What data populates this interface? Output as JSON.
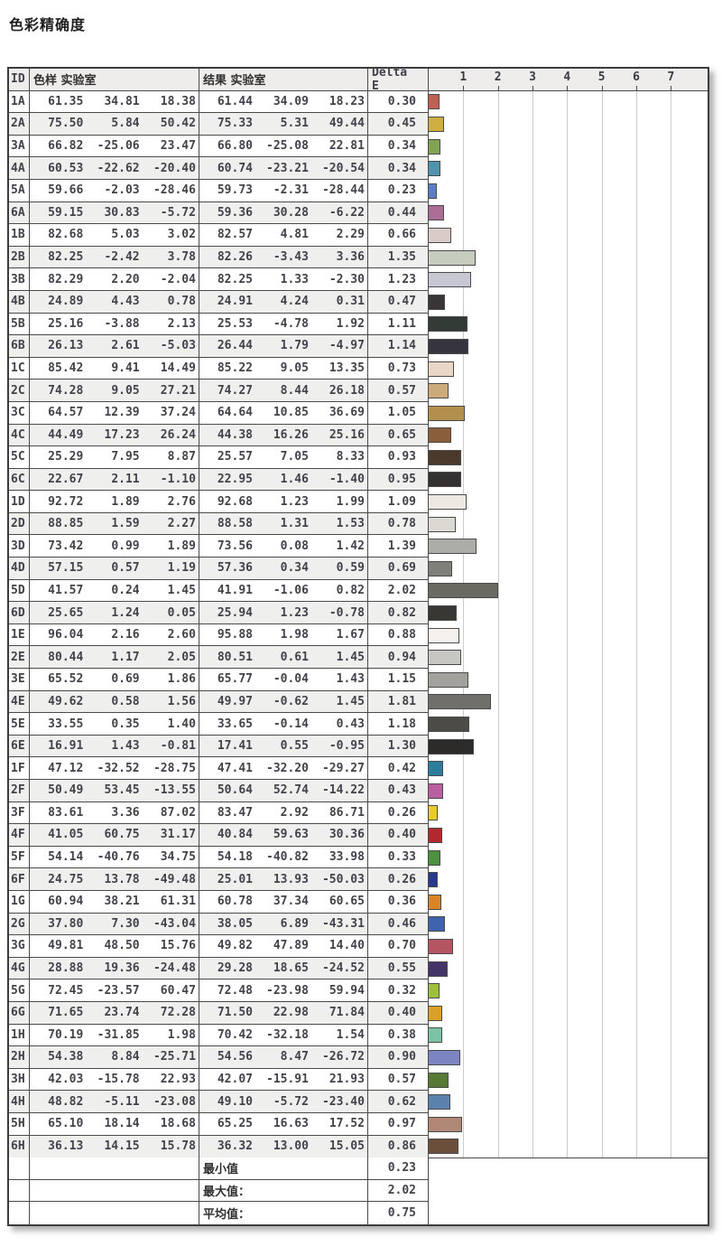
{
  "title": "色彩精确度",
  "table": {
    "headers": {
      "id": "ID",
      "sample": "色样 实验室",
      "result": "结果 实验室",
      "delta": "Delta E"
    },
    "summary": [
      {
        "label": "最小值",
        "value": 0.23
      },
      {
        "label": "最大值：",
        "value": 2.02
      },
      {
        "label": "平均值：",
        "value": 0.75
      }
    ]
  },
  "chart_data": {
    "type": "bar",
    "title": "色彩精确度 Delta E per color patch",
    "xlabel": "Delta E",
    "ylabel": "色样 ID",
    "ticks": [
      1,
      2,
      3,
      4,
      5,
      6,
      7
    ],
    "xlim": [
      0,
      8.06
    ],
    "grid": true,
    "rows": [
      {
        "id": "1A",
        "sample": [
          61.35,
          34.81,
          18.38
        ],
        "result": [
          61.44,
          34.09,
          18.23
        ],
        "delta": 0.3,
        "color": "#c06158"
      },
      {
        "id": "2A",
        "sample": [
          75.5,
          5.84,
          50.42
        ],
        "result": [
          75.33,
          5.31,
          49.44
        ],
        "delta": 0.45,
        "color": "#cfae43"
      },
      {
        "id": "3A",
        "sample": [
          66.82,
          -25.06,
          23.47
        ],
        "result": [
          66.8,
          -25.08,
          22.81
        ],
        "delta": 0.34,
        "color": "#82a452"
      },
      {
        "id": "4A",
        "sample": [
          60.53,
          -22.62,
          -20.4
        ],
        "result": [
          60.74,
          -23.21,
          -20.54
        ],
        "delta": 0.34,
        "color": "#4f93ad"
      },
      {
        "id": "5A",
        "sample": [
          59.66,
          -2.03,
          -28.46
        ],
        "result": [
          59.73,
          -2.31,
          -28.44
        ],
        "delta": 0.23,
        "color": "#5b7ec3"
      },
      {
        "id": "6A",
        "sample": [
          59.15,
          30.83,
          -5.72
        ],
        "result": [
          59.36,
          30.28,
          -6.22
        ],
        "delta": 0.44,
        "color": "#aa6d96"
      },
      {
        "id": "1B",
        "sample": [
          82.68,
          5.03,
          3.02
        ],
        "result": [
          82.57,
          4.81,
          2.29
        ],
        "delta": 0.66,
        "color": "#d8cbc8"
      },
      {
        "id": "2B",
        "sample": [
          82.25,
          -2.42,
          3.78
        ],
        "result": [
          82.26,
          -3.43,
          3.36
        ],
        "delta": 1.35,
        "color": "#c6ccbe"
      },
      {
        "id": "3B",
        "sample": [
          82.29,
          2.2,
          -2.04
        ],
        "result": [
          82.25,
          1.33,
          -2.3
        ],
        "delta": 1.23,
        "color": "#c7c6d3"
      },
      {
        "id": "4B",
        "sample": [
          24.89,
          4.43,
          0.78
        ],
        "result": [
          24.91,
          4.24,
          0.31
        ],
        "delta": 0.47,
        "color": "#3a3637"
      },
      {
        "id": "5B",
        "sample": [
          25.16,
          -3.88,
          2.13
        ],
        "result": [
          25.53,
          -4.78,
          1.92
        ],
        "delta": 1.11,
        "color": "#343b36"
      },
      {
        "id": "6B",
        "sample": [
          26.13,
          2.61,
          -5.03
        ],
        "result": [
          26.44,
          1.79,
          -4.97
        ],
        "delta": 1.14,
        "color": "#35343f"
      },
      {
        "id": "1C",
        "sample": [
          85.42,
          9.41,
          14.49
        ],
        "result": [
          85.22,
          9.05,
          13.35
        ],
        "delta": 0.73,
        "color": "#ead6c6"
      },
      {
        "id": "2C",
        "sample": [
          74.28,
          9.05,
          27.21
        ],
        "result": [
          74.27,
          8.44,
          26.18
        ],
        "delta": 0.57,
        "color": "#ccaa79"
      },
      {
        "id": "3C",
        "sample": [
          64.57,
          12.39,
          37.24
        ],
        "result": [
          64.64,
          10.85,
          36.69
        ],
        "delta": 1.05,
        "color": "#b28f4d"
      },
      {
        "id": "4C",
        "sample": [
          44.49,
          17.23,
          26.24
        ],
        "result": [
          44.38,
          16.26,
          25.16
        ],
        "delta": 0.65,
        "color": "#8a5e3b"
      },
      {
        "id": "5C",
        "sample": [
          25.29,
          7.95,
          8.87
        ],
        "result": [
          25.57,
          7.05,
          8.33
        ],
        "delta": 0.93,
        "color": "#4b3a2b"
      },
      {
        "id": "6C",
        "sample": [
          22.67,
          2.11,
          -1.1
        ],
        "result": [
          22.95,
          1.46,
          -1.4
        ],
        "delta": 0.95,
        "color": "#343130"
      },
      {
        "id": "1D",
        "sample": [
          92.72,
          1.89,
          2.76
        ],
        "result": [
          92.68,
          1.23,
          1.99
        ],
        "delta": 1.09,
        "color": "#ede8e2"
      },
      {
        "id": "2D",
        "sample": [
          88.85,
          1.59,
          2.27
        ],
        "result": [
          88.58,
          1.31,
          1.53
        ],
        "delta": 0.78,
        "color": "#dcd9d4"
      },
      {
        "id": "3D",
        "sample": [
          73.42,
          0.99,
          1.89
        ],
        "result": [
          73.56,
          0.08,
          1.42
        ],
        "delta": 1.39,
        "color": "#adada8"
      },
      {
        "id": "4D",
        "sample": [
          57.15,
          0.57,
          1.19
        ],
        "result": [
          57.36,
          0.34,
          0.59
        ],
        "delta": 0.69,
        "color": "#80807b"
      },
      {
        "id": "5D",
        "sample": [
          41.57,
          0.24,
          1.45
        ],
        "result": [
          41.91,
          -1.06,
          0.82
        ],
        "delta": 2.02,
        "color": "#6a6a63"
      },
      {
        "id": "6D",
        "sample": [
          25.65,
          1.24,
          0.05
        ],
        "result": [
          25.94,
          1.23,
          -0.78
        ],
        "delta": 0.82,
        "color": "#393734"
      },
      {
        "id": "1E",
        "sample": [
          96.04,
          2.16,
          2.6
        ],
        "result": [
          95.88,
          1.98,
          1.67
        ],
        "delta": 0.88,
        "color": "#f6f1ed"
      },
      {
        "id": "2E",
        "sample": [
          80.44,
          1.17,
          2.05
        ],
        "result": [
          80.51,
          0.61,
          1.45
        ],
        "delta": 0.94,
        "color": "#c8c6c2"
      },
      {
        "id": "3E",
        "sample": [
          65.52,
          0.69,
          1.86
        ],
        "result": [
          65.77,
          -0.04,
          1.43
        ],
        "delta": 1.15,
        "color": "#a3a19d"
      },
      {
        "id": "4E",
        "sample": [
          49.62,
          0.58,
          1.56
        ],
        "result": [
          49.97,
          -0.62,
          1.45
        ],
        "delta": 1.81,
        "color": "#716f6a"
      },
      {
        "id": "5E",
        "sample": [
          33.55,
          0.35,
          1.4
        ],
        "result": [
          33.65,
          -0.14,
          0.43
        ],
        "delta": 1.18,
        "color": "#4d4b47"
      },
      {
        "id": "6E",
        "sample": [
          16.91,
          1.43,
          -0.81
        ],
        "result": [
          17.41,
          0.55,
          -0.95
        ],
        "delta": 1.3,
        "color": "#2d2b29"
      },
      {
        "id": "1F",
        "sample": [
          47.12,
          -32.52,
          -28.75
        ],
        "result": [
          47.41,
          -32.2,
          -29.27
        ],
        "delta": 0.42,
        "color": "#2c7d9c"
      },
      {
        "id": "2F",
        "sample": [
          50.49,
          53.45,
          -13.55
        ],
        "result": [
          50.64,
          52.74,
          -14.22
        ],
        "delta": 0.43,
        "color": "#b75f9f"
      },
      {
        "id": "3F",
        "sample": [
          83.61,
          3.36,
          87.02
        ],
        "result": [
          83.47,
          2.92,
          86.71
        ],
        "delta": 0.26,
        "color": "#e9cc2c"
      },
      {
        "id": "4F",
        "sample": [
          41.05,
          60.75,
          31.17
        ],
        "result": [
          40.84,
          59.63,
          30.36
        ],
        "delta": 0.4,
        "color": "#b2282e"
      },
      {
        "id": "5F",
        "sample": [
          54.14,
          -40.76,
          34.75
        ],
        "result": [
          54.18,
          -40.82,
          33.98
        ],
        "delta": 0.33,
        "color": "#4d9140"
      },
      {
        "id": "6F",
        "sample": [
          24.75,
          13.78,
          -49.48
        ],
        "result": [
          25.01,
          13.93,
          -50.03
        ],
        "delta": 0.26,
        "color": "#2a3a8b"
      },
      {
        "id": "1G",
        "sample": [
          60.94,
          38.21,
          61.31
        ],
        "result": [
          60.78,
          37.34,
          60.65
        ],
        "delta": 0.36,
        "color": "#d98426"
      },
      {
        "id": "2G",
        "sample": [
          37.8,
          7.3,
          -43.04
        ],
        "result": [
          38.05,
          6.89,
          -43.31
        ],
        "delta": 0.46,
        "color": "#3f62ad"
      },
      {
        "id": "3G",
        "sample": [
          49.81,
          48.5,
          15.76
        ],
        "result": [
          49.82,
          47.89,
          14.4
        ],
        "delta": 0.7,
        "color": "#b55463"
      },
      {
        "id": "4G",
        "sample": [
          28.88,
          19.36,
          -24.48
        ],
        "result": [
          29.28,
          18.65,
          -24.52
        ],
        "delta": 0.55,
        "color": "#443468"
      },
      {
        "id": "5G",
        "sample": [
          72.45,
          -23.57,
          60.47
        ],
        "result": [
          72.48,
          -23.98,
          59.94
        ],
        "delta": 0.32,
        "color": "#9cbf3c"
      },
      {
        "id": "6G",
        "sample": [
          71.65,
          23.74,
          72.28
        ],
        "result": [
          71.5,
          22.98,
          71.84
        ],
        "delta": 0.4,
        "color": "#d9a126"
      },
      {
        "id": "1H",
        "sample": [
          70.19,
          -31.85,
          1.98
        ],
        "result": [
          70.42,
          -32.18,
          1.54
        ],
        "delta": 0.38,
        "color": "#7cc2a4"
      },
      {
        "id": "2H",
        "sample": [
          54.38,
          8.84,
          -25.71
        ],
        "result": [
          54.56,
          8.47,
          -26.72
        ],
        "delta": 0.9,
        "color": "#7d85c1"
      },
      {
        "id": "3H",
        "sample": [
          42.03,
          -15.78,
          22.93
        ],
        "result": [
          42.07,
          -15.91,
          21.93
        ],
        "delta": 0.57,
        "color": "#567936"
      },
      {
        "id": "4H",
        "sample": [
          48.82,
          -5.11,
          -23.08
        ],
        "result": [
          49.1,
          -5.72,
          -23.4
        ],
        "delta": 0.62,
        "color": "#5a82ad"
      },
      {
        "id": "5H",
        "sample": [
          65.1,
          18.14,
          18.68
        ],
        "result": [
          65.25,
          16.63,
          17.52
        ],
        "delta": 0.97,
        "color": "#b18875"
      },
      {
        "id": "6H",
        "sample": [
          36.13,
          14.15,
          15.78
        ],
        "result": [
          36.32,
          13.0,
          15.05
        ],
        "delta": 0.86,
        "color": "#6b4f3b"
      }
    ]
  }
}
